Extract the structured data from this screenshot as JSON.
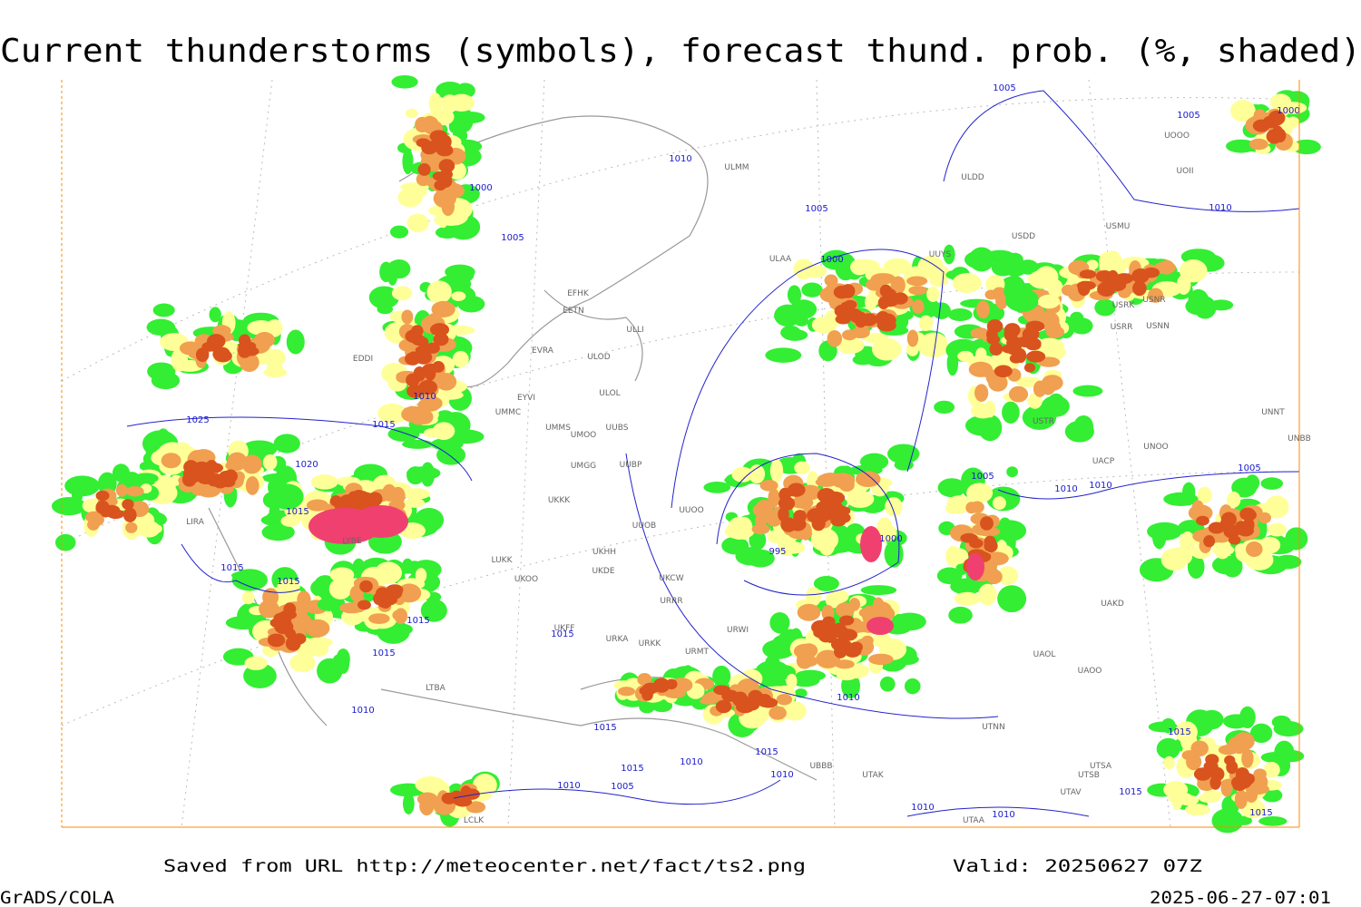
{
  "header": {
    "title": "Current thunderstorms (symbols), forecast thund. prob. (%, shaded)"
  },
  "map": {
    "isobars": [
      1005,
      1005,
      1000,
      1010,
      1000,
      1005,
      1005,
      1010,
      1000,
      1010,
      1025,
      1015,
      1020,
      1015,
      1005,
      1010,
      1010,
      1005,
      1015,
      1015,
      995,
      1000,
      1015,
      1015,
      1015,
      1010,
      1015,
      1010,
      1015,
      1015,
      1010,
      1010,
      1005,
      1010,
      1010,
      1010,
      1015,
      1015,
      1015
    ],
    "stations": [
      "EFHK",
      "EETN",
      "ULLI",
      "EVRA",
      "ULOD",
      "ULOL",
      "EYVI",
      "UMMC",
      "UMMS",
      "UMOO",
      "UUBS",
      "UMGG",
      "UUBP",
      "UKKK",
      "UUOO",
      "UUOB",
      "LUKK",
      "UKOO",
      "UKHH",
      "UKDE",
      "ULAA",
      "ULMM",
      "ULDD",
      "USMU",
      "USDD",
      "UUYS",
      "UOOO",
      "UOII",
      "USNR",
      "USRK",
      "USRR",
      "USNN",
      "USTR",
      "UNOO",
      "UACP",
      "UNNT",
      "UNBB",
      "UAKD",
      "UAOL",
      "UAOO",
      "UTNN",
      "UTSA",
      "UTSB",
      "UTAV",
      "UTAK",
      "UBBB",
      "UTAA",
      "URKK",
      "URRR",
      "URWI",
      "URMT",
      "UKCW",
      "URKA",
      "UKFF",
      "LTBA",
      "LCLK",
      "LIRA",
      "EDDI",
      "LYBE"
    ]
  },
  "footer": {
    "source": "Saved from URL http://meteocenter.net/fact/ts2.png",
    "valid": "Valid: 20250627 07Z",
    "software": "GrADS/COLA",
    "timestamp": "2025-06-27-07:01"
  }
}
